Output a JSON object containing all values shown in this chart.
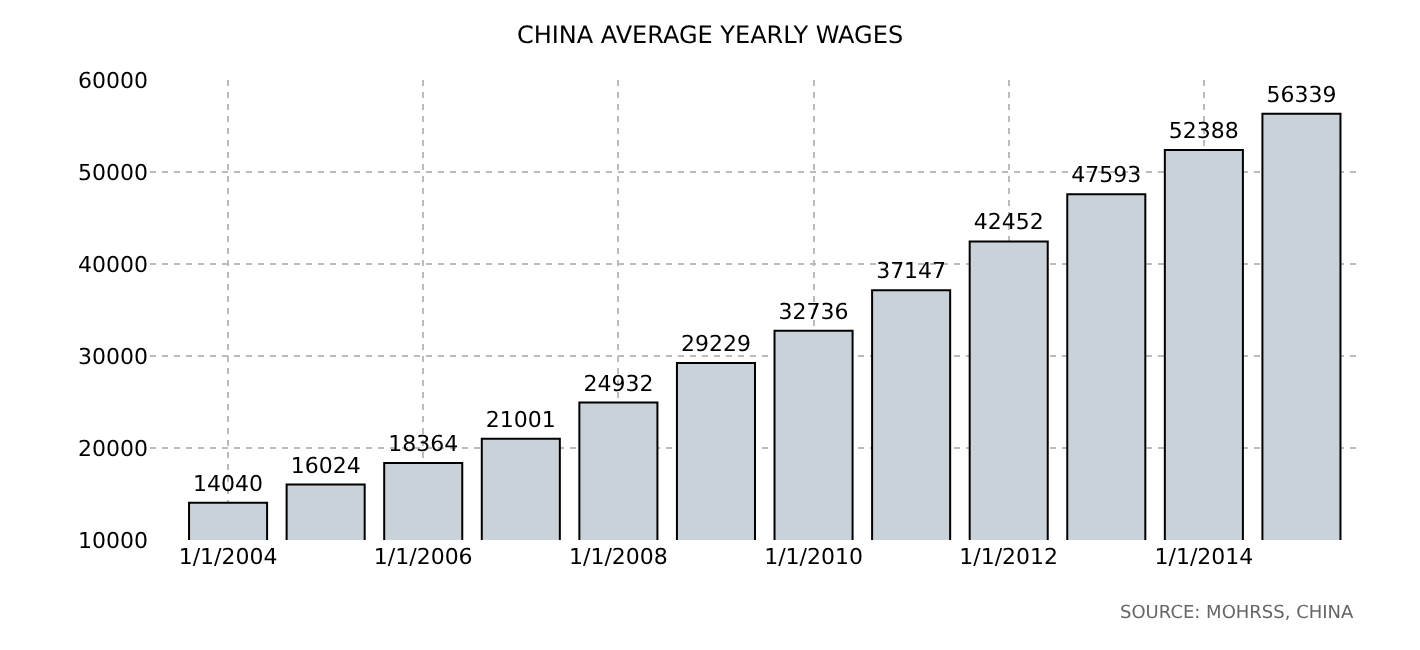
{
  "chart_data": {
    "type": "bar",
    "title": "CHINA AVERAGE YEARLY WAGES",
    "categories": [
      "1/1/2004",
      null,
      "1/1/2006",
      null,
      "1/1/2008",
      null,
      "1/1/2010",
      null,
      "1/1/2012",
      null,
      "1/1/2014",
      null
    ],
    "values": [
      14040,
      16024,
      18364,
      21001,
      24932,
      29229,
      32736,
      37147,
      42452,
      47593,
      52388,
      56339
    ],
    "color": "#c9d1d9",
    "ylim": [
      10000,
      60000
    ],
    "yticks": [
      10000,
      20000,
      30000,
      40000,
      50000,
      60000
    ],
    "grid": true,
    "data_labels": true,
    "legend": false,
    "annotations": [
      "SOURCE: MOHRSS, CHINA"
    ]
  }
}
